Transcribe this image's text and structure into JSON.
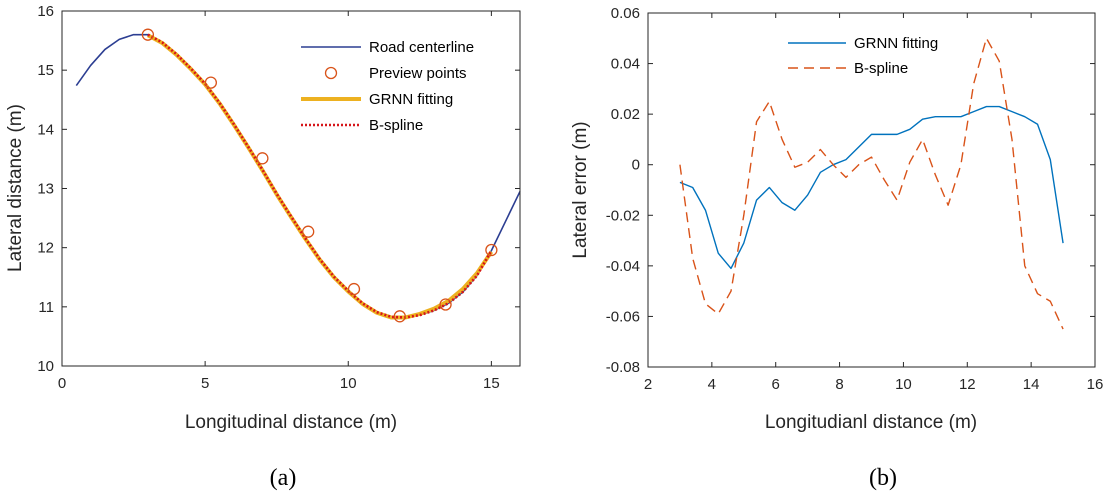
{
  "colors": {
    "road_centerline": "#2c3e92",
    "preview_points": "#d95319",
    "grnn_fitting_a": "#edb120",
    "bspline_a": "#d6161a",
    "grnn_fitting_b": "#0072bd",
    "bspline_b": "#d95319",
    "axis": "#262626"
  },
  "chart_data": [
    {
      "id": "a",
      "caption": "(a)",
      "type": "line",
      "xlabel": "Longitudinal distance (m)",
      "ylabel": "Lateral distance (m)",
      "xlim": [
        0,
        16
      ],
      "ylim": [
        10,
        16
      ],
      "xticks": [
        0,
        5,
        10,
        15
      ],
      "yticks": [
        10,
        11,
        12,
        13,
        14,
        15,
        16
      ],
      "xtick_labels": [
        "0",
        "5",
        "10",
        "15"
      ],
      "ytick_labels": [
        "10",
        "11",
        "12",
        "13",
        "14",
        "15",
        "16"
      ],
      "legend_position": "top-right",
      "series": [
        {
          "name": "Road centerline",
          "style": "solid",
          "x": [
            0.5,
            1.0,
            1.5,
            2.0,
            2.5,
            3.0,
            3.5,
            4.0,
            4.5,
            5.0,
            5.5,
            6.0,
            6.5,
            7.0,
            7.5,
            8.0,
            8.5,
            9.0,
            9.5,
            10.0,
            10.5,
            11.0,
            11.5,
            12.0,
            12.5,
            13.0,
            13.5,
            14.0,
            14.5,
            15.0,
            15.5,
            16.0
          ],
          "y": [
            14.74,
            15.08,
            15.35,
            15.52,
            15.6,
            15.6,
            15.47,
            15.27,
            15.03,
            14.77,
            14.45,
            14.09,
            13.71,
            13.32,
            12.91,
            12.53,
            12.16,
            11.81,
            11.51,
            11.27,
            11.06,
            10.91,
            10.83,
            10.82,
            10.86,
            10.94,
            11.06,
            11.25,
            11.53,
            11.95,
            12.45,
            12.95
          ]
        },
        {
          "name": "Preview points",
          "style": "markers",
          "x": [
            3.0,
            5.2,
            7.0,
            8.6,
            10.2,
            11.8,
            13.4,
            15.0
          ],
          "y": [
            15.6,
            14.79,
            13.51,
            12.27,
            11.3,
            10.84,
            11.04,
            11.96
          ]
        },
        {
          "name": "GRNN fitting",
          "style": "solid-thick",
          "x": [
            3.0,
            3.5,
            4.0,
            4.5,
            5.0,
            5.5,
            6.0,
            6.5,
            7.0,
            7.5,
            8.0,
            8.5,
            9.0,
            9.5,
            10.0,
            10.5,
            11.0,
            11.5,
            12.0,
            12.5,
            13.0,
            13.5,
            14.0,
            14.5,
            15.0
          ],
          "y": [
            15.59,
            15.46,
            15.26,
            15.02,
            14.76,
            14.44,
            14.08,
            13.7,
            13.31,
            12.9,
            12.52,
            12.15,
            11.8,
            11.5,
            11.26,
            11.05,
            10.9,
            10.82,
            10.82,
            10.88,
            10.97,
            11.1,
            11.3,
            11.57,
            11.93
          ]
        },
        {
          "name": "B-spline",
          "style": "dotted",
          "x": [
            3.0,
            3.5,
            4.0,
            4.5,
            5.0,
            5.5,
            6.0,
            6.5,
            7.0,
            7.5,
            8.0,
            8.5,
            9.0,
            9.5,
            10.0,
            10.5,
            11.0,
            11.5,
            12.0,
            12.5,
            13.0,
            13.5,
            14.0,
            14.5,
            15.0
          ],
          "y": [
            15.6,
            15.47,
            15.27,
            15.03,
            14.77,
            14.45,
            14.09,
            13.71,
            13.32,
            12.91,
            12.53,
            12.16,
            11.81,
            11.51,
            11.27,
            11.06,
            10.91,
            10.83,
            10.82,
            10.86,
            10.94,
            11.06,
            11.25,
            11.53,
            11.95
          ]
        }
      ]
    },
    {
      "id": "b",
      "caption": "(b)",
      "type": "line",
      "xlabel": "Longitudianl distance (m)",
      "ylabel": "Lateral error (m)",
      "xlim": [
        2,
        16
      ],
      "ylim": [
        -0.08,
        0.06
      ],
      "xticks": [
        2,
        4,
        6,
        8,
        10,
        12,
        14,
        16
      ],
      "yticks": [
        -0.08,
        -0.06,
        -0.04,
        -0.02,
        0,
        0.02,
        0.04,
        0.06
      ],
      "xtick_labels": [
        "2",
        "4",
        "6",
        "8",
        "10",
        "12",
        "14",
        "16"
      ],
      "ytick_labels": [
        "-0.08",
        "-0.06",
        "-0.04",
        "-0.02",
        "0",
        "0.02",
        "0.04",
        "0.06"
      ],
      "legend_position": "top",
      "series": [
        {
          "name": "GRNN fitting",
          "style": "solid",
          "x": [
            3.0,
            3.4,
            3.8,
            4.2,
            4.6,
            5.0,
            5.4,
            5.8,
            6.2,
            6.6,
            7.0,
            7.4,
            7.8,
            8.2,
            8.6,
            9.0,
            9.4,
            9.8,
            10.2,
            10.6,
            11.0,
            11.4,
            11.8,
            12.2,
            12.6,
            13.0,
            13.4,
            13.8,
            14.2,
            14.6,
            15.0
          ],
          "y": [
            -0.007,
            -0.009,
            -0.018,
            -0.035,
            -0.041,
            -0.031,
            -0.014,
            -0.009,
            -0.015,
            -0.018,
            -0.012,
            -0.003,
            0.0,
            0.002,
            0.007,
            0.012,
            0.012,
            0.012,
            0.014,
            0.018,
            0.019,
            0.019,
            0.019,
            0.021,
            0.023,
            0.023,
            0.021,
            0.019,
            0.016,
            0.002,
            -0.031
          ]
        },
        {
          "name": "B-spline",
          "style": "dashed",
          "x": [
            3.0,
            3.4,
            3.8,
            4.2,
            4.6,
            5.0,
            5.4,
            5.8,
            6.2,
            6.6,
            7.0,
            7.4,
            7.8,
            8.2,
            8.6,
            9.0,
            9.4,
            9.8,
            10.2,
            10.6,
            11.0,
            11.4,
            11.8,
            12.2,
            12.6,
            13.0,
            13.4,
            13.8,
            14.2,
            14.6,
            15.0
          ],
          "y": [
            0.0,
            -0.037,
            -0.055,
            -0.059,
            -0.05,
            -0.02,
            0.017,
            0.025,
            0.01,
            -0.001,
            0.001,
            0.006,
            0.0,
            -0.005,
            0.0,
            0.003,
            -0.006,
            -0.014,
            0.001,
            0.01,
            -0.004,
            -0.016,
            0.0,
            0.032,
            0.05,
            0.041,
            0.01,
            -0.04,
            -0.051,
            -0.054,
            -0.065
          ]
        }
      ]
    }
  ]
}
